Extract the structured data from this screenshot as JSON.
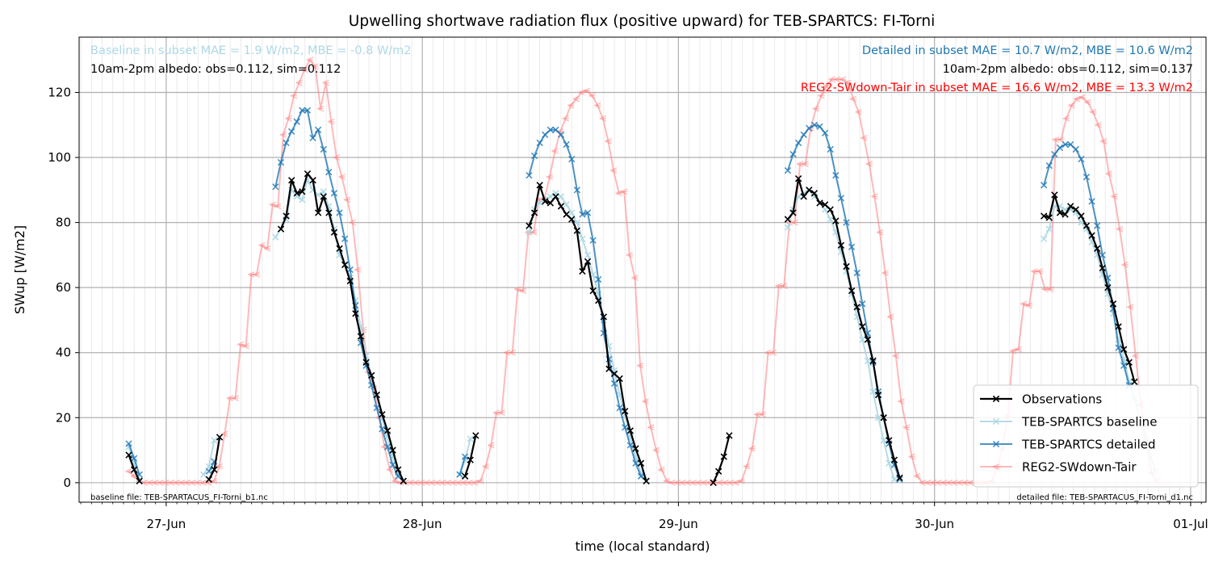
{
  "chart_data": {
    "type": "line",
    "title": "Upwelling shortwave radiation flux (positive upward) for TEB-SPARTCS: FI-Torni",
    "xlabel": "time (local standard)",
    "ylabel": "SWup [W/m2]",
    "x_units": "days (0 = 27-Jun 00:00 local standard)",
    "xlim": [
      -0.34,
      4.06
    ],
    "ylim": [
      -6,
      137
    ],
    "x_ticks": [
      {
        "x": 0,
        "label": "27-Jun"
      },
      {
        "x": 1,
        "label": "28-Jun"
      },
      {
        "x": 2,
        "label": "29-Jun"
      },
      {
        "x": 3,
        "label": "30-Jun"
      },
      {
        "x": 4,
        "label": "01-Jul"
      }
    ],
    "y_ticks": [
      0,
      20,
      40,
      60,
      80,
      100,
      120
    ],
    "grid": true,
    "legend_position": "lower-right",
    "annotations": {
      "baseline_stats": "Baseline in subset MAE = 1.9 W/m2, MBE = -0.8 W/m2",
      "baseline_albedo": "10am-2pm albedo: obs=0.112, sim=0.112",
      "detailed_stats": "Detailed in subset MAE = 10.7 W/m2, MBE = 10.6 W/m2",
      "detailed_albedo": "10am-2pm albedo: obs=0.112, sim=0.137",
      "reg2_stats": "REG2-SWdown-Tair in subset MAE = 16.6 W/m2, MBE = 13.3 W/m2",
      "baseline_file": "baseline file: TEB-SPARTACUS_FI-Torni_b1.nc",
      "detailed_file": "detailed file: TEB-SPARTACUS_FI-Torni_d1.nc"
    },
    "colors": {
      "observations": "#000000",
      "baseline": "#add8e6",
      "detailed": "#1f77b4",
      "reg2": "#ff8080"
    },
    "series": [
      {
        "name": "Observations",
        "segments": [
          {
            "x0": -0.146,
            "dt": 0.0208,
            "y": [
              8.5,
              4.0,
              0.5
            ]
          },
          {
            "x0": 0.167,
            "dt": 0.0208,
            "y": [
              1.0,
              4.0,
              14.0
            ]
          },
          {
            "x0": 0.448,
            "dt": 0.0208,
            "y": [
              78,
              82,
              93,
              89,
              89.5,
              95,
              93,
              83,
              88,
              83,
              77,
              72,
              67,
              62,
              52,
              45,
              37,
              33,
              27,
              21,
              16,
              10,
              4,
              0.5
            ]
          },
          {
            "x0": 1.167,
            "dt": 0.0208,
            "y": [
              2,
              7,
              14.5
            ]
          },
          {
            "x0": 1.417,
            "dt": 0.0208,
            "y": [
              79,
              83,
              91.5,
              86.5,
              86,
              88,
              85,
              82.5,
              81,
              77.5,
              65,
              68,
              59,
              56,
              51,
              35,
              33.5,
              32,
              22,
              16,
              10.5,
              6,
              0.5
            ]
          },
          {
            "x0": 2.136,
            "dt": 0.0208,
            "y": [
              0,
              3.5,
              8,
              14.5
            ]
          },
          {
            "x0": 2.427,
            "dt": 0.0208,
            "y": [
              81,
              83,
              93.5,
              88,
              90,
              89,
              86,
              85.5,
              84,
              80.5,
              73,
              66.5,
              59,
              54,
              48,
              44,
              37.5,
              27,
              20,
              13,
              7,
              1.5
            ]
          },
          {
            "x0": 3.427,
            "dt": 0.0208,
            "y": [
              82,
              81.5,
              88.5,
              83,
              82.5,
              85,
              84,
              82,
              79,
              76,
              72,
              66,
              60,
              55,
              48,
              41,
              37,
              31
            ]
          }
        ]
      },
      {
        "name": "TEB-SPARTCS baseline",
        "segments": [
          {
            "x0": -0.146,
            "dt": 0.0208,
            "y": [
              11,
              5.5,
              1
            ]
          },
          {
            "x0": 0.146,
            "dt": 0.0208,
            "y": [
              2.5,
              5,
              13
            ]
          },
          {
            "x0": 0.427,
            "dt": 0.0208,
            "y": [
              75.5,
              78,
              81,
              90,
              88,
              87,
              93,
              90,
              88.5,
              89.5,
              85,
              78,
              70,
              67,
              63,
              56,
              48,
              39,
              33,
              27,
              20,
              14,
              8,
              3,
              0.5
            ]
          },
          {
            "x0": 1.146,
            "dt": 0.0208,
            "y": [
              2.5,
              7,
              13.5
            ]
          },
          {
            "x0": 1.417,
            "dt": 0.0208,
            "y": [
              77,
              84,
              86,
              87,
              88,
              89,
              88,
              85.5,
              83,
              80,
              75,
              70,
              64,
              58,
              50,
              42,
              34.5,
              27,
              21,
              14,
              8,
              3,
              0.5
            ]
          },
          {
            "x0": 2.427,
            "dt": 0.0208,
            "y": [
              78.5,
              84,
              88,
              89,
              90,
              88,
              86,
              84,
              81,
              77,
              71,
              65,
              58,
              51,
              44,
              37.5,
              28,
              20,
              13,
              6,
              1
            ]
          },
          {
            "x0": 3.427,
            "dt": 0.0208,
            "y": [
              75,
              78,
              85,
              85,
              84,
              84,
              83,
              80,
              78,
              74,
              70,
              64,
              58,
              52,
              44,
              38,
              31,
              26,
              20,
              13.5,
              8,
              3.5
            ]
          }
        ]
      },
      {
        "name": "TEB-SPARTCS detailed",
        "segments": [
          {
            "x0": -0.146,
            "dt": 0.0208,
            "y": [
              12,
              7.5,
              2.5
            ]
          },
          {
            "x0": 0.167,
            "dt": 0.0208,
            "y": [
              3.5,
              6.5
            ]
          },
          {
            "x0": 0.427,
            "dt": 0.0208,
            "y": [
              91,
              98.5,
              104.5,
              108,
              111,
              114.5,
              114.5,
              106,
              108.5,
              102.5,
              95.5,
              89,
              83,
              75,
              65.5,
              54.5,
              43,
              36,
              30,
              23,
              16.5,
              11,
              5.5,
              2,
              0.5
            ]
          },
          {
            "x0": 1.146,
            "dt": 0.0208,
            "y": [
              2.5,
              8
            ]
          },
          {
            "x0": 1.417,
            "dt": 0.0208,
            "y": [
              94.5,
              100.5,
              104.5,
              107,
              108.5,
              108.5,
              107,
              104,
              99.5,
              90,
              82.5,
              83,
              74.5,
              62.5,
              46,
              38,
              30.5,
              23,
              17,
              11.5,
              6,
              2,
              0.5
            ]
          },
          {
            "x0": 2.427,
            "dt": 0.0208,
            "y": [
              96,
              101,
              104.5,
              107,
              109,
              110,
              109.5,
              107.5,
              102.5,
              94.5,
              87.5,
              80,
              72.5,
              64.5,
              55,
              46,
              37,
              28,
              20,
              12,
              5.5,
              1
            ]
          },
          {
            "x0": 3.427,
            "dt": 0.0208,
            "y": [
              91.5,
              97.5,
              101,
              103,
              104,
              104,
              102.5,
              99.5,
              94,
              86.5,
              79,
              70,
              63,
              53.5,
              41.5,
              36,
              30
            ]
          }
        ]
      },
      {
        "name": "REG2-SWdown-Tair",
        "segments": [
          {
            "x0": -0.146,
            "dt": 0.0208,
            "y": [
              3.5,
              2,
              0.5,
              0,
              0,
              0,
              0,
              0,
              0,
              0,
              0,
              0,
              0,
              0,
              0,
              0,
              0.5,
              5,
              15,
              26,
              26,
              42.5,
              42,
              64,
              64,
              73,
              72,
              85.5,
              85,
              107,
              112,
              119,
              123,
              127,
              130,
              128,
              115,
              123,
              111,
              100,
              94,
              87,
              80,
              65.5,
              47,
              34,
              29,
              20,
              11,
              4,
              0.5,
              0,
              0,
              0,
              0,
              0,
              0,
              0,
              0,
              0,
              0,
              0,
              0,
              0,
              0,
              0,
              0.5,
              5,
              11.5,
              21.5,
              21.5,
              40,
              40,
              59.5,
              59,
              77,
              77,
              87,
              87,
              94,
              102,
              108,
              112,
              116,
              118,
              120,
              120.5,
              119,
              116,
              112,
              105,
              96,
              89,
              89.5,
              70,
              63,
              36,
              25,
              17,
              10,
              4,
              0.5,
              0,
              0,
              0,
              0,
              0,
              0,
              0,
              0,
              0,
              0,
              0,
              0,
              0,
              0.5,
              5,
              10.5,
              21,
              21,
              40,
              40,
              60.5,
              60.5,
              80,
              80,
              98,
              98,
              109,
              115,
              119,
              122,
              124,
              124,
              124,
              123,
              118,
              114,
              106,
              98,
              88,
              77,
              64.5,
              51,
              39,
              25,
              17,
              8,
              2,
              0,
              0,
              0,
              0,
              0,
              0,
              0,
              0,
              0,
              0,
              0,
              0,
              0,
              0.5,
              4.5,
              10.5,
              20.5,
              40.5,
              41,
              55,
              54.5,
              65,
              65,
              59.5,
              59.5,
              105.5,
              105.5,
              112,
              116,
              118,
              118.5,
              117,
              114,
              110,
              105,
              95,
              88,
              78,
              67,
              54,
              39,
              24,
              13,
              3,
              0.5
            ]
          }
        ]
      }
    ]
  }
}
